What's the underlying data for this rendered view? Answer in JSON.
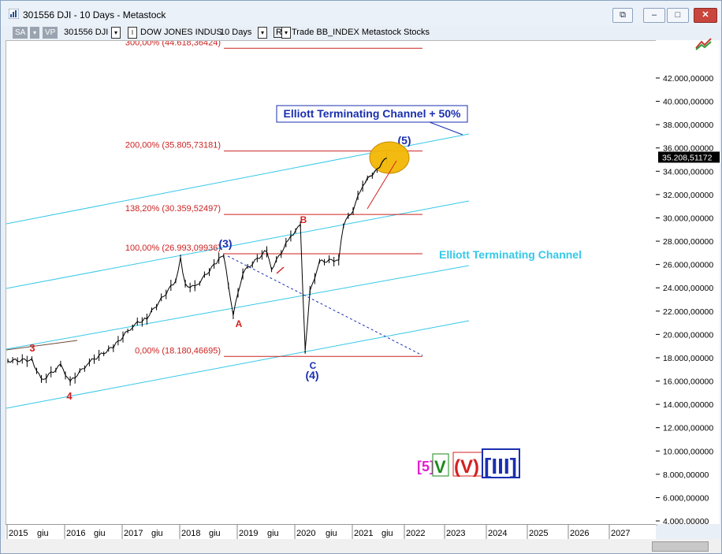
{
  "window": {
    "title": "301556 DJI - 10 Days - Metastock",
    "controls": [
      "⧉",
      "–",
      "□",
      "✕"
    ]
  },
  "toolbar": {
    "sa_label": "SA",
    "vp_label": "VP",
    "symbol": "301556 DJI",
    "security_name": "DOW JONES INDUS",
    "periodicity": "10 Days",
    "r_label": "R",
    "info_text": "Trade  BB_INDEX  Metastock  Stocks"
  },
  "price_axis": {
    "ticks": [
      "42.000,00000",
      "40.000,00000",
      "38.000,00000",
      "36.000,00000",
      "34.000,00000",
      "32.000,00000",
      "30.000,00000",
      "28.000,00000",
      "26.000,00000",
      "24.000,00000",
      "22.000,00000",
      "20.000,00000",
      "18.000,00000",
      "16.000,00000",
      "14.000,00000",
      "12.000,00000",
      "10.000,00000",
      "8.000,00000",
      "6.000,00000",
      "4.000,00000"
    ],
    "last_price": "35.208,51172"
  },
  "time_axis": {
    "labels": [
      "2015",
      "giu",
      "2016",
      "giu",
      "2017",
      "giu",
      "2018",
      "giu",
      "2019",
      "giu",
      "2020",
      "giu",
      "2021",
      "giu",
      "2022",
      "2023",
      "2024",
      "2025",
      "2026",
      "2027"
    ]
  },
  "fib_levels": [
    {
      "label": "300,00% (44.618,36424)",
      "value": 44618.36424
    },
    {
      "label": "200,00% (35.805,73181)",
      "value": 35805.73181
    },
    {
      "label": "138,20% (30.359,52497)",
      "value": 30359.52497
    },
    {
      "label": "100,00% (26.993,09936)",
      "value": 26993.09936
    },
    {
      "label": "0,00% (18.180,46695)",
      "value": 18180.46695
    }
  ],
  "annotations": {
    "channel_50": "Elliott Terminating Channel + 50%",
    "channel": "Elliott Terminating Channel",
    "wave_3_red": "3",
    "wave_4_red": "4",
    "wave_3_blue": "(3)",
    "wave_A": "A",
    "wave_B": "B",
    "wave_C": "C",
    "wave_4_blue": "(4)",
    "wave_5_blue": "(5)"
  },
  "legend": {
    "five": "[5]",
    "v_roman": "V",
    "v_paren": "(V)",
    "iii": "[III]"
  },
  "colors": {
    "fib_line": "#cc2222",
    "channel_line": "#35c8e8",
    "wave_red": "#d42020",
    "wave_blue": "#1a2fb0",
    "bars": "#000000",
    "ellipse_fill": "#f2b705",
    "magenta": "#e020d0",
    "green": "#1a8a1a"
  },
  "chart_data": {
    "type": "line",
    "title": "301556 DJI - 10 Days",
    "x": [
      "2015-01",
      "2015-06",
      "2015-08",
      "2015-12",
      "2016-02",
      "2016-06",
      "2016-11",
      "2017-03",
      "2017-06",
      "2017-12",
      "2018-01",
      "2018-02",
      "2018-04",
      "2018-09",
      "2018-10",
      "2018-12",
      "2019-02",
      "2019-07",
      "2019-08",
      "2019-12",
      "2020-02",
      "2020-03",
      "2020-04",
      "2020-06",
      "2020-10",
      "2020-11",
      "2021-01",
      "2021-03",
      "2021-06",
      "2021-08"
    ],
    "series": [
      {
        "values": [
          17800,
          17900,
          16100,
          17400,
          16000,
          17700,
          19000,
          20800,
          21500,
          24700,
          26600,
          24300,
          24100,
          26500,
          26800,
          21800,
          25400,
          27300,
          25700,
          28500,
          29400,
          18600,
          23700,
          26300,
          26500,
          29500,
          30800,
          32900,
          34300,
          35200
        ]
      }
    ],
    "ylim": [
      4000,
      44000
    ],
    "xlim": [
      "2015-01",
      "2027-12"
    ]
  }
}
